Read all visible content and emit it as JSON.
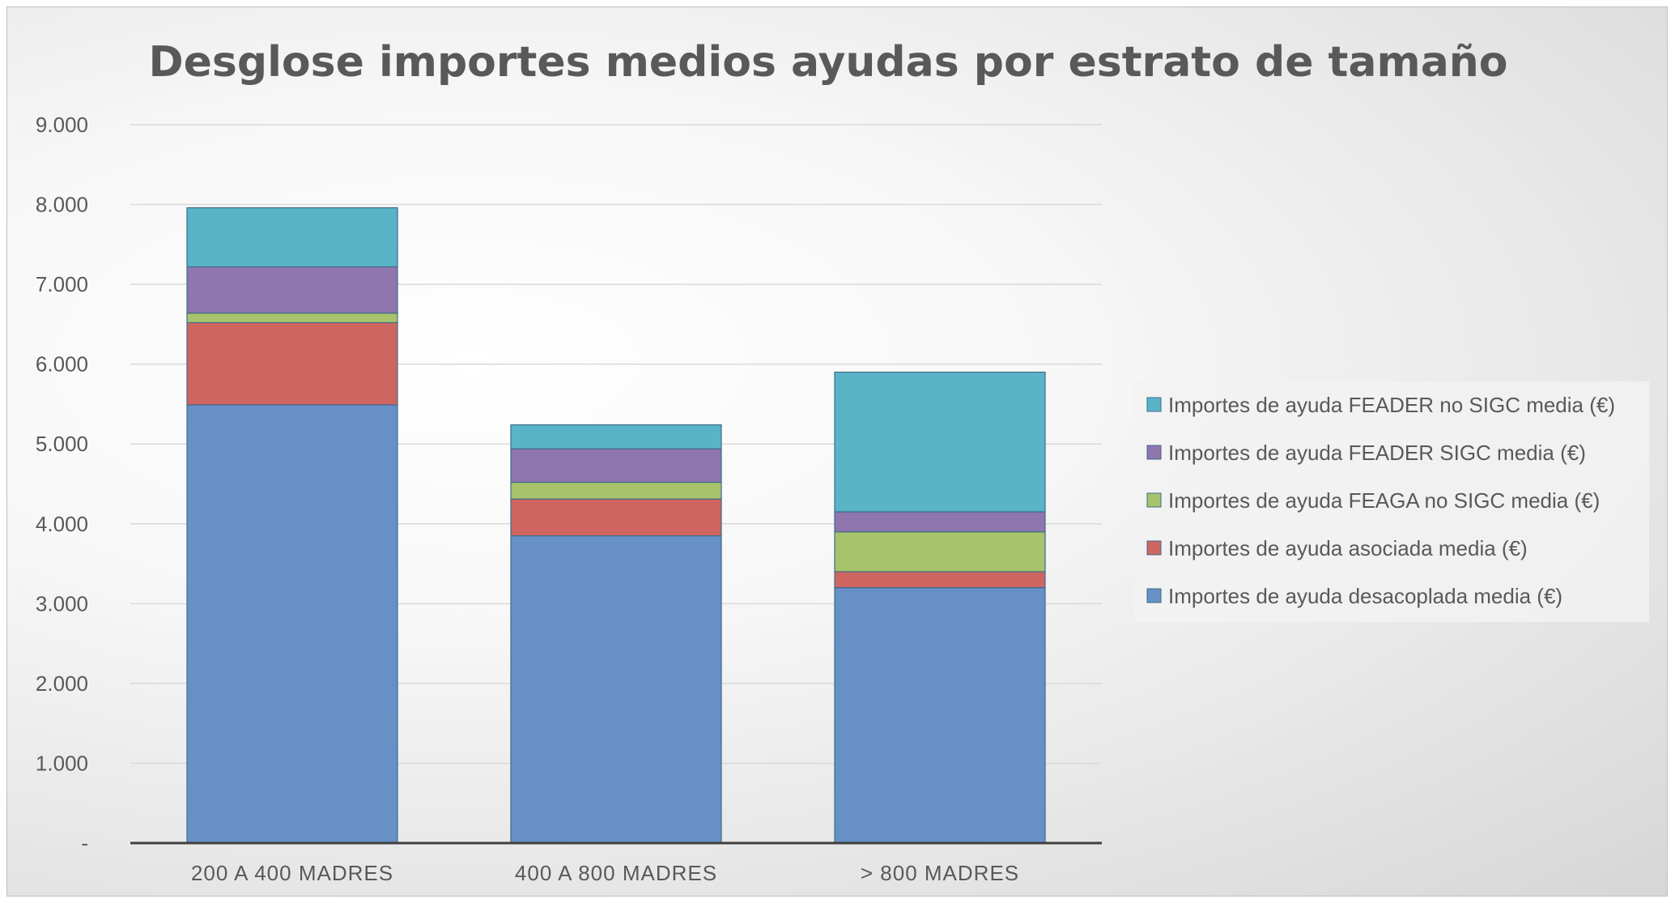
{
  "chart_data": {
    "type": "bar",
    "stacked": true,
    "title": "Desglose importes medios ayudas por estrato de tamaño",
    "xlabel": "",
    "ylabel": "",
    "ylim": [
      0,
      9000
    ],
    "yticks": [
      0,
      1000,
      2000,
      3000,
      4000,
      5000,
      6000,
      7000,
      8000,
      9000
    ],
    "ytick_labels": [
      "-",
      "1.000",
      "2.000",
      "3.000",
      "4.000",
      "5.000",
      "6.000",
      "7.000",
      "8.000",
      "9.000"
    ],
    "grid": true,
    "legend_position": "right",
    "categories": [
      "200 A 400 MADRES",
      "400 A 800 MADRES",
      "> 800 MADRES"
    ],
    "series": [
      {
        "name": "Importes de ayuda desacoplada media (€)",
        "color": "#6690c6",
        "values": [
          5490,
          3850,
          3200
        ]
      },
      {
        "name": "Importes de ayuda asociada media (€)",
        "color": "#cf6561",
        "values": [
          1030,
          460,
          200
        ]
      },
      {
        "name": "Importes de ayuda FEAGA no SIGC media (€)",
        "color": "#a7c36b",
        "values": [
          120,
          210,
          500
        ]
      },
      {
        "name": "Importes de ayuda FEADER SIGC media (€)",
        "color": "#8f76ae",
        "values": [
          580,
          420,
          250
        ]
      },
      {
        "name": "Importes de ayuda FEADER no SIGC media (€)",
        "color": "#5ab4c8",
        "values": [
          740,
          300,
          1750
        ]
      }
    ]
  }
}
